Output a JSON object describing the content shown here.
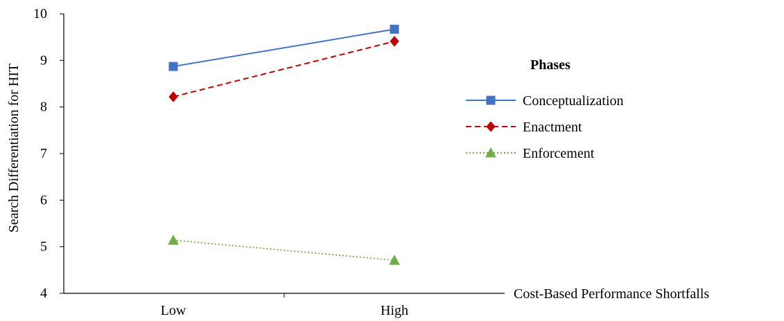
{
  "chart_data": {
    "type": "line",
    "title": "",
    "xlabel": "Cost-Based Performance Shortfalls",
    "ylabel": "Search Differentiation for HIT",
    "categories": [
      "Low",
      "High"
    ],
    "ylim": [
      4,
      10
    ],
    "yticks": [
      "4",
      "5",
      "6",
      "7",
      "8",
      "9",
      "10"
    ],
    "grid": false,
    "legend": {
      "title": "Phases",
      "placement": "right"
    },
    "series": [
      {
        "name": "Conceptualization",
        "values": [
          8.87,
          9.67
        ],
        "color": "#4472c4",
        "marker": "square",
        "line_style": "solid"
      },
      {
        "name": "Enactment",
        "values": [
          8.22,
          9.41
        ],
        "color": "#c00000",
        "marker": "diamond",
        "line_style": "dashed"
      },
      {
        "name": "Enforcement",
        "values": [
          5.14,
          4.71
        ],
        "color": "#70ad47",
        "marker": "triangle",
        "line_style": "dotted"
      }
    ]
  }
}
